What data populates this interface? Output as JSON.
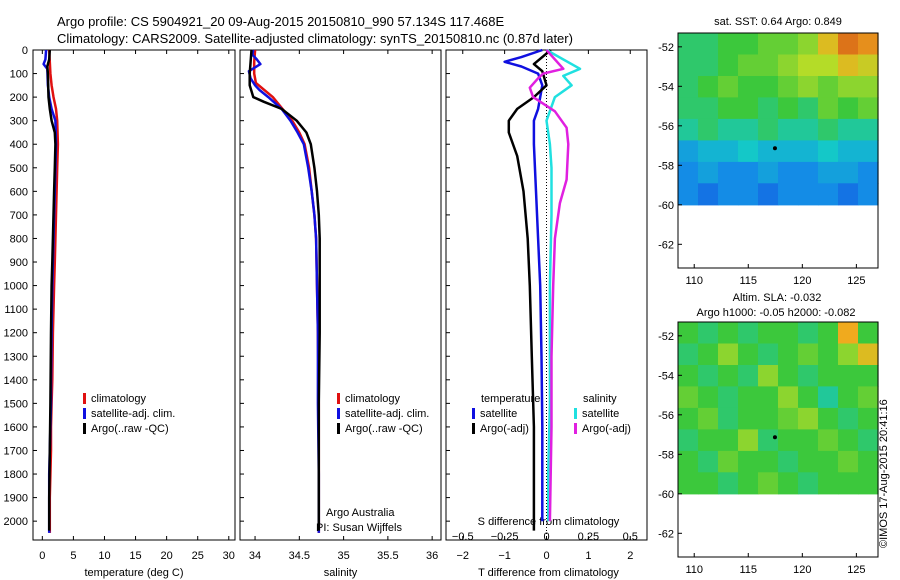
{
  "header": {
    "line1": "Argo profile: CS 5904921_20 09-Aug-2015 20150810_990 57.134S 117.468E",
    "line2": "Climatology: CARS2009. Satellite-adjusted climatology: synTS_20150810.nc (0.87d later)"
  },
  "colors": {
    "climatology": "#e01010",
    "satellite_clim": "#1010e0",
    "argo": "#000000",
    "satellite_s": "#20e0e0",
    "argo_adj_s": "#e020e0"
  },
  "chart_data": [
    {
      "id": "temperature",
      "type": "line",
      "xlabel": "temperature (deg C)",
      "xlim": [
        -1.5,
        31
      ],
      "xticks": [
        0,
        5,
        10,
        15,
        20,
        25,
        30
      ],
      "xtick_labels": [
        "0",
        "5",
        "10",
        "15",
        "20",
        "25",
        "30"
      ],
      "ylim": [
        2080,
        0
      ],
      "yticks": [
        0,
        100,
        200,
        300,
        400,
        500,
        600,
        700,
        800,
        900,
        1000,
        1100,
        1200,
        1300,
        1400,
        1500,
        1600,
        1700,
        1800,
        1900,
        2000
      ],
      "legend": [
        "climatology",
        "satellite-adj. clim.",
        "Argo(..raw -QC)"
      ],
      "series": [
        {
          "name": "climatology",
          "color": "#e01010",
          "x": [
            1.1,
            1.2,
            1.3,
            1.5,
            1.8,
            2.2,
            2.4,
            2.5,
            2.4,
            2.3,
            2.2,
            2.1,
            2.0,
            1.9,
            1.8,
            1.7,
            1.6,
            1.5,
            1.4,
            1.4,
            1.3,
            1.2,
            1.2
          ],
          "depth": [
            0,
            50,
            100,
            150,
            200,
            250,
            300,
            400,
            500,
            600,
            700,
            800,
            900,
            1000,
            1100,
            1200,
            1400,
            1500,
            1600,
            1700,
            1800,
            1900,
            2050
          ]
        },
        {
          "name": "satellite-adj. clim.",
          "color": "#1010e0",
          "x": [
            0.6,
            0.5,
            0.2,
            0.8,
            0.9,
            1.1,
            1.5,
            2.1,
            2.2,
            2.1,
            2.0,
            1.9,
            1.8,
            1.7,
            1.6,
            1.5,
            1.4,
            1.4,
            1.3,
            1.2,
            1.1,
            1.1
          ],
          "depth": [
            0,
            40,
            60,
            80,
            150,
            200,
            250,
            300,
            400,
            500,
            600,
            700,
            800,
            900,
            1000,
            1200,
            1400,
            1500,
            1600,
            1700,
            1800,
            2050
          ]
        },
        {
          "name": "Argo(..raw -QC)",
          "color": "#000000",
          "x": [
            1.2,
            1.1,
            0.8,
            0.9,
            1.0,
            1.2,
            1.5,
            2.0,
            2.1,
            2.0,
            1.9,
            1.8,
            1.7,
            1.6,
            1.5,
            1.4,
            1.3,
            1.2,
            1.1,
            1.1
          ],
          "depth": [
            0,
            40,
            70,
            100,
            200,
            250,
            300,
            350,
            400,
            500,
            600,
            700,
            800,
            900,
            1000,
            1200,
            1500,
            1700,
            1900,
            2040
          ]
        }
      ]
    },
    {
      "id": "salinity",
      "type": "line",
      "xlabel": "salinity",
      "xlim": [
        33.83,
        36.1
      ],
      "xticks": [
        34,
        34.5,
        35,
        35.5,
        36
      ],
      "xtick_labels": [
        "34",
        "34.5",
        "35",
        "35.5",
        "36"
      ],
      "ylim": [
        2080,
        0
      ],
      "legend": [
        "climatology",
        "satellite-adj. clim.",
        "Argo(..raw -QC)"
      ],
      "annotation": [
        "Argo Australia",
        "PI: Susan Wijffels"
      ],
      "series": [
        {
          "name": "climatology",
          "color": "#e01010",
          "x": [
            34.0,
            33.99,
            33.99,
            34.01,
            34.2,
            34.31,
            34.42,
            34.5,
            34.56,
            34.61,
            34.64,
            34.67,
            34.69,
            34.7,
            34.71,
            34.72,
            34.72
          ],
          "depth": [
            0,
            50,
            100,
            140,
            200,
            250,
            300,
            350,
            400,
            500,
            600,
            700,
            800,
            1000,
            1200,
            1500,
            2050
          ]
        },
        {
          "name": "satellite-adj. clim.",
          "color": "#1010e0",
          "x": [
            33.98,
            33.97,
            34.02,
            34.06,
            33.93,
            33.95,
            34.0,
            34.05,
            34.15,
            34.3,
            34.4,
            34.48,
            34.55,
            34.6,
            34.64,
            34.67,
            34.69,
            34.7,
            34.71,
            34.71,
            34.72,
            34.72
          ],
          "depth": [
            0,
            20,
            40,
            60,
            90,
            120,
            150,
            170,
            200,
            250,
            300,
            350,
            400,
            500,
            600,
            700,
            800,
            1000,
            1200,
            1500,
            1800,
            2050
          ]
        },
        {
          "name": "Argo(..raw -QC)",
          "color": "#000000",
          "x": [
            33.96,
            33.95,
            33.94,
            33.94,
            33.98,
            34.1,
            34.3,
            34.47,
            34.58,
            34.63,
            34.67,
            34.7,
            34.72,
            34.73,
            34.73,
            34.73,
            34.73,
            34.72,
            34.72,
            34.72
          ],
          "depth": [
            0,
            50,
            100,
            150,
            200,
            220,
            250,
            300,
            350,
            400,
            500,
            600,
            700,
            800,
            900,
            1000,
            1200,
            1500,
            1800,
            2040
          ]
        }
      ]
    },
    {
      "id": "differences",
      "type": "line",
      "xlabel": "T difference from climatology",
      "x2label": "S difference from climatology",
      "xlim": [
        -2.4,
        2.4
      ],
      "xticks": [
        -2,
        -1,
        0,
        1,
        2
      ],
      "xtick_labels": [
        "−2",
        "−1",
        "0",
        "1",
        "2"
      ],
      "x2ticks": [
        -0.5,
        -0.25,
        0,
        0.25,
        0.5
      ],
      "x2tick_labels": [
        "−0.5",
        "−0.25",
        "0",
        "0.25",
        "0.5"
      ],
      "ylim": [
        2080,
        0
      ],
      "legend_titles": [
        "temperature",
        "salinity"
      ],
      "legend": [
        "satellite",
        "Argo(-adj)",
        "satellite",
        "Argo(-adj)"
      ],
      "series": [
        {
          "name": "satellite",
          "group": "temperature",
          "color": "#1010e0",
          "dT": [
            -0.1,
            -0.6,
            -1.0,
            -0.6,
            -0.2,
            -0.1,
            -0.15,
            -0.2,
            -0.3,
            -0.3,
            -0.25,
            -0.2,
            -0.15,
            -0.12,
            -0.1,
            -0.1
          ],
          "depth": [
            0,
            30,
            50,
            70,
            100,
            150,
            200,
            250,
            300,
            400,
            600,
            800,
            1000,
            1300,
            1600,
            2000
          ]
        },
        {
          "name": "Argo(-adj)",
          "group": "temperature",
          "color": "#000000",
          "dT": [
            0.1,
            -0.1,
            -0.3,
            -0.1,
            0.0,
            -0.3,
            -0.7,
            -0.9,
            -0.9,
            -0.7,
            -0.55,
            -0.45,
            -0.4,
            -0.35,
            -0.3,
            -0.3,
            -0.3
          ],
          "depth": [
            0,
            30,
            60,
            90,
            150,
            200,
            250,
            300,
            350,
            450,
            600,
            800,
            1000,
            1300,
            1600,
            1900,
            2040
          ]
        },
        {
          "name": "satellite",
          "group": "salinity",
          "color": "#20e0e0",
          "dS": [
            0.0,
            0.2,
            0.1,
            0.15,
            0.05,
            0.0,
            0.02,
            0.03,
            0.03,
            0.02,
            0.02,
            0.01,
            0.01
          ],
          "depth": [
            0,
            80,
            110,
            150,
            200,
            300,
            400,
            500,
            700,
            1000,
            1500,
            1800,
            2000
          ]
        },
        {
          "name": "Argo(-adj)",
          "group": "salinity",
          "color": "#e020e0",
          "dS": [
            0.0,
            0.1,
            -0.02,
            -0.05,
            -0.1,
            -0.08,
            0.05,
            0.12,
            0.13,
            0.12,
            0.08,
            0.05,
            0.04,
            0.03,
            0.03,
            0.02
          ],
          "depth": [
            0,
            80,
            100,
            120,
            160,
            200,
            260,
            330,
            400,
            550,
            650,
            800,
            1000,
            1300,
            1600,
            2000
          ]
        }
      ]
    },
    {
      "id": "sst-map",
      "type": "heatmap",
      "title": "sat. SST: 0.64 Argo: 0.849",
      "xlim": [
        108.5,
        127
      ],
      "ylim": [
        -63.2,
        -51.3
      ],
      "xticks": [
        110,
        115,
        120,
        125
      ],
      "xtick_labels": [
        "110",
        "115",
        "120",
        "125"
      ],
      "yticks": [
        -52,
        -54,
        -56,
        -58,
        -60,
        -62
      ],
      "ytick_labels": [
        "-52",
        "-54",
        "-56",
        "-58",
        "-60",
        "-62"
      ],
      "data_ylim": [
        -60,
        -51.3
      ],
      "grid": {
        "lon": [
          108.5,
          127
        ],
        "lat_top": -51.3,
        "lat_bottom": -60,
        "cols": 10,
        "rows": 8,
        "values": [
          [
            0.45,
            0.45,
            0.5,
            0.5,
            0.55,
            0.55,
            0.6,
            0.75,
            0.9,
            0.85
          ],
          [
            0.45,
            0.45,
            0.5,
            0.55,
            0.55,
            0.6,
            0.65,
            0.65,
            0.75,
            0.7
          ],
          [
            0.45,
            0.5,
            0.55,
            0.5,
            0.5,
            0.55,
            0.6,
            0.55,
            0.6,
            0.6
          ],
          [
            0.45,
            0.45,
            0.5,
            0.5,
            0.45,
            0.5,
            0.45,
            0.55,
            0.5,
            0.55
          ],
          [
            0.4,
            0.45,
            0.4,
            0.4,
            0.45,
            0.4,
            0.4,
            0.45,
            0.4,
            0.4
          ],
          [
            0.25,
            0.3,
            0.3,
            0.35,
            0.3,
            0.3,
            0.3,
            0.35,
            0.3,
            0.3
          ],
          [
            0.2,
            0.25,
            0.2,
            0.2,
            0.25,
            0.2,
            0.2,
            0.25,
            0.25,
            0.2
          ],
          [
            0.2,
            0.15,
            0.2,
            0.2,
            0.15,
            0.2,
            0.2,
            0.2,
            0.15,
            0.2
          ]
        ]
      },
      "marker": {
        "lon": 117.468,
        "lat": -57.134
      }
    },
    {
      "id": "sla-map",
      "type": "heatmap",
      "title_lines": [
        "Altim. SLA: -0.032",
        "Argo h1000: -0.05 h2000: -0.082"
      ],
      "xlim": [
        108.5,
        127
      ],
      "ylim": [
        -63.2,
        -51.3
      ],
      "xticks": [
        110,
        115,
        120,
        125
      ],
      "xtick_labels": [
        "110",
        "115",
        "120",
        "125"
      ],
      "yticks": [
        -52,
        -54,
        -56,
        -58,
        -60,
        -62
      ],
      "ytick_labels": [
        "-52",
        "-54",
        "-56",
        "-58",
        "-60",
        "-62"
      ],
      "data_ylim": [
        -60,
        -51.3
      ],
      "grid": {
        "lon": [
          108.5,
          127
        ],
        "lat_top": -51.3,
        "lat_bottom": -60,
        "cols": 10,
        "rows": 8,
        "values": [
          [
            0.5,
            0.45,
            0.5,
            0.45,
            0.5,
            0.5,
            0.45,
            0.5,
            0.8,
            0.5
          ],
          [
            0.45,
            0.5,
            0.6,
            0.5,
            0.45,
            0.5,
            0.55,
            0.5,
            0.6,
            0.75
          ],
          [
            0.5,
            0.45,
            0.5,
            0.45,
            0.6,
            0.5,
            0.45,
            0.5,
            0.5,
            0.5
          ],
          [
            0.55,
            0.5,
            0.45,
            0.5,
            0.5,
            0.6,
            0.5,
            0.4,
            0.5,
            0.55
          ],
          [
            0.5,
            0.55,
            0.45,
            0.5,
            0.5,
            0.55,
            0.6,
            0.5,
            0.45,
            0.5
          ],
          [
            0.45,
            0.5,
            0.5,
            0.6,
            0.45,
            0.5,
            0.5,
            0.55,
            0.5,
            0.45
          ],
          [
            0.5,
            0.45,
            0.55,
            0.5,
            0.5,
            0.45,
            0.5,
            0.5,
            0.55,
            0.5
          ],
          [
            0.5,
            0.5,
            0.45,
            0.5,
            0.55,
            0.5,
            0.45,
            0.5,
            0.5,
            0.5
          ]
        ]
      },
      "marker": {
        "lon": 117.468,
        "lat": -57.134
      }
    }
  ],
  "footer": {
    "stamp": "©IMOS 17-Aug-2015 20:41:16"
  }
}
